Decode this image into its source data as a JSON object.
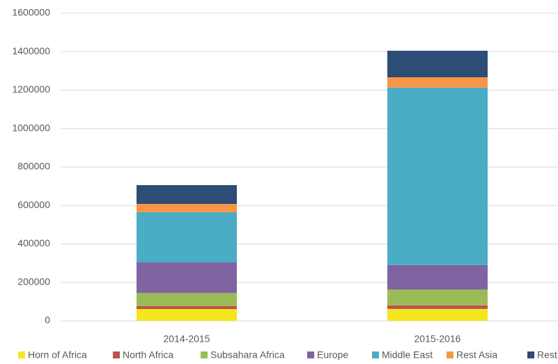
{
  "chart_data": {
    "type": "stacked_bar",
    "categories": [
      "2014-2015",
      "2015-2016"
    ],
    "series": [
      {
        "name": "Horn of Africa",
        "color": "#f5e61e",
        "values": [
          61500,
          62000
        ]
      },
      {
        "name": "North Africa",
        "color": "#c0504d",
        "values": [
          14500,
          18000
        ]
      },
      {
        "name": "Subsahara Africa",
        "color": "#9bbb59",
        "values": [
          69000,
          83000
        ]
      },
      {
        "name": "Europe",
        "color": "#8064a2",
        "values": [
          159000,
          127000
        ]
      },
      {
        "name": "Middle East",
        "color": "#4bacc6",
        "values": [
          261000,
          923000
        ]
      },
      {
        "name": "Rest Asia",
        "color": "#f79646",
        "values": [
          43000,
          54000
        ]
      },
      {
        "name": "Rest",
        "color": "#2c4d75",
        "values": [
          98000,
          138000
        ]
      }
    ],
    "ylim": [
      0,
      1600000
    ],
    "yticks": [
      0,
      200000,
      400000,
      600000,
      800000,
      1000000,
      1200000,
      1400000,
      1600000
    ],
    "grid": true
  }
}
